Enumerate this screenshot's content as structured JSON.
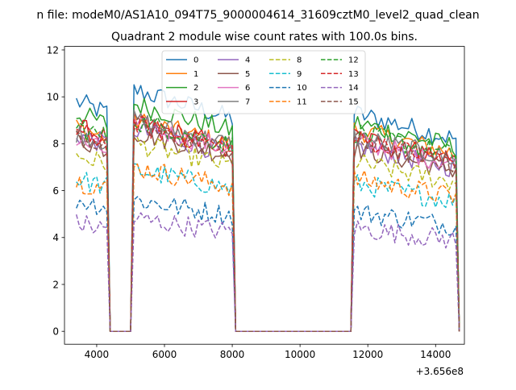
{
  "figure": {
    "suptitle": "n file: modeM0/AS1A10_094T75_9000004614_31609cztM0_level2_quad_clean",
    "title": "Quadrant 2 module wise count rates with 100.0s bins.",
    "x_offset_label": "+3.656e8"
  },
  "chart_data": {
    "type": "line",
    "title": "Quadrant 2 module wise count rates with 100.0s bins.",
    "xlabel": "",
    "ylabel": "",
    "x_offset": 365600000,
    "xlim": [
      3050,
      14850
    ],
    "ylim": [
      -0.55,
      12.15
    ],
    "xticks": [
      4000,
      6000,
      8000,
      10000,
      12000,
      14000
    ],
    "yticks": [
      0,
      2,
      4,
      6,
      8,
      10,
      12
    ],
    "grid": false,
    "legend": {
      "placement": "top-center",
      "columns": 4
    },
    "bin_seconds": 100,
    "segments": [
      {
        "start": 3400,
        "end": 4300
      },
      {
        "start": 5100,
        "end": 8050
      },
      {
        "start": 11600,
        "end": 14650
      }
    ],
    "series": [
      {
        "name": "0",
        "color": "#1f77b4",
        "dash": "solid",
        "levels": [
          9.8,
          10.3,
          9.3
        ]
      },
      {
        "name": "1",
        "color": "#ff7f0e",
        "dash": "solid",
        "levels": [
          8.7,
          9.0,
          8.6
        ]
      },
      {
        "name": "2",
        "color": "#2ca02c",
        "dash": "solid",
        "levels": [
          9.3,
          9.7,
          8.9
        ]
      },
      {
        "name": "3",
        "color": "#d62728",
        "dash": "solid",
        "levels": [
          8.7,
          8.9,
          8.3
        ]
      },
      {
        "name": "4",
        "color": "#9467bd",
        "dash": "solid",
        "levels": [
          8.4,
          8.6,
          7.9
        ]
      },
      {
        "name": "5",
        "color": "#8c564b",
        "dash": "solid",
        "levels": [
          8.2,
          8.5,
          7.8
        ]
      },
      {
        "name": "6",
        "color": "#e377c2",
        "dash": "solid",
        "levels": [
          8.1,
          8.8,
          8.1
        ]
      },
      {
        "name": "7",
        "color": "#7f7f7f",
        "dash": "solid",
        "levels": [
          8.5,
          9.0,
          8.3
        ]
      },
      {
        "name": "8",
        "color": "#bcbd22",
        "dash": "dashed",
        "levels": [
          7.5,
          8.0,
          7.2
        ]
      },
      {
        "name": "9",
        "color": "#17becf",
        "dash": "dashed",
        "levels": [
          6.5,
          6.9,
          6.3
        ]
      },
      {
        "name": "10",
        "color": "#1f77b4",
        "dash": "dashed",
        "levels": [
          5.6,
          5.6,
          5.1
        ]
      },
      {
        "name": "11",
        "color": "#ff7f0e",
        "dash": "dashed",
        "levels": [
          6.4,
          7.0,
          6.5
        ]
      },
      {
        "name": "12",
        "color": "#2ca02c",
        "dash": "dashed",
        "levels": [
          8.7,
          9.0,
          8.5
        ]
      },
      {
        "name": "13",
        "color": "#d62728",
        "dash": "dashed",
        "levels": [
          8.5,
          8.8,
          8.2
        ]
      },
      {
        "name": "14",
        "color": "#9467bd",
        "dash": "dashed",
        "levels": [
          4.6,
          4.8,
          4.4
        ]
      },
      {
        "name": "15",
        "color": "#8c564b",
        "dash": "dashed",
        "levels": [
          8.3,
          8.7,
          8.1
        ]
      }
    ]
  }
}
